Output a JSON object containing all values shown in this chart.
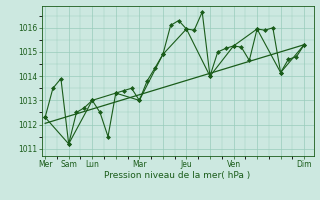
{
  "xlabel": "Pression niveau de la mer( hPa )",
  "bg_color": "#cce8e0",
  "grid_color": "#99ccbb",
  "line_color": "#1a5c1a",
  "ylim": [
    1010.7,
    1016.9
  ],
  "yticks": [
    1011,
    1012,
    1013,
    1014,
    1015,
    1016
  ],
  "tick_labels": [
    "Mer",
    "Sam",
    "Lun",
    "",
    "Mar",
    "",
    "Jeu",
    "",
    "Ven",
    "",
    "",
    "Dim"
  ],
  "tick_positions": [
    0,
    1,
    2,
    3,
    4,
    5,
    6,
    7,
    8,
    9,
    10,
    11
  ],
  "xlim": [
    -0.15,
    11.4
  ],
  "series_all_x": [
    0,
    0.33,
    0.67,
    1,
    1.33,
    1.67,
    2,
    2.33,
    2.67,
    3,
    3.33,
    3.67,
    4,
    4.33,
    4.67,
    5,
    5.33,
    5.67,
    6,
    6.33,
    6.67,
    7,
    7.33,
    7.67,
    8,
    8.33,
    8.67,
    9,
    9.33,
    9.67,
    10,
    10.33,
    10.67,
    11
  ],
  "series_all_y": [
    1012.3,
    1013.5,
    1013.9,
    1011.2,
    1012.5,
    1012.7,
    1013.0,
    1012.5,
    1011.5,
    1013.3,
    1013.4,
    1013.5,
    1013.0,
    1013.8,
    1014.35,
    1014.9,
    1016.1,
    1016.3,
    1015.95,
    1015.9,
    1016.65,
    1014.0,
    1015.0,
    1015.15,
    1015.25,
    1015.2,
    1014.65,
    1015.95,
    1015.9,
    1016.0,
    1014.15,
    1014.7,
    1014.8,
    1015.3
  ],
  "series_day_x": [
    0,
    1,
    2,
    3,
    4,
    5,
    6,
    7,
    8,
    9,
    10,
    11
  ],
  "series_day_y": [
    1012.3,
    1011.2,
    1013.0,
    1013.3,
    1013.0,
    1014.9,
    1015.95,
    1014.0,
    1015.25,
    1015.95,
    1014.15,
    1015.3
  ],
  "trend_x": [
    0,
    11
  ],
  "trend_y": [
    1012.05,
    1015.3
  ]
}
